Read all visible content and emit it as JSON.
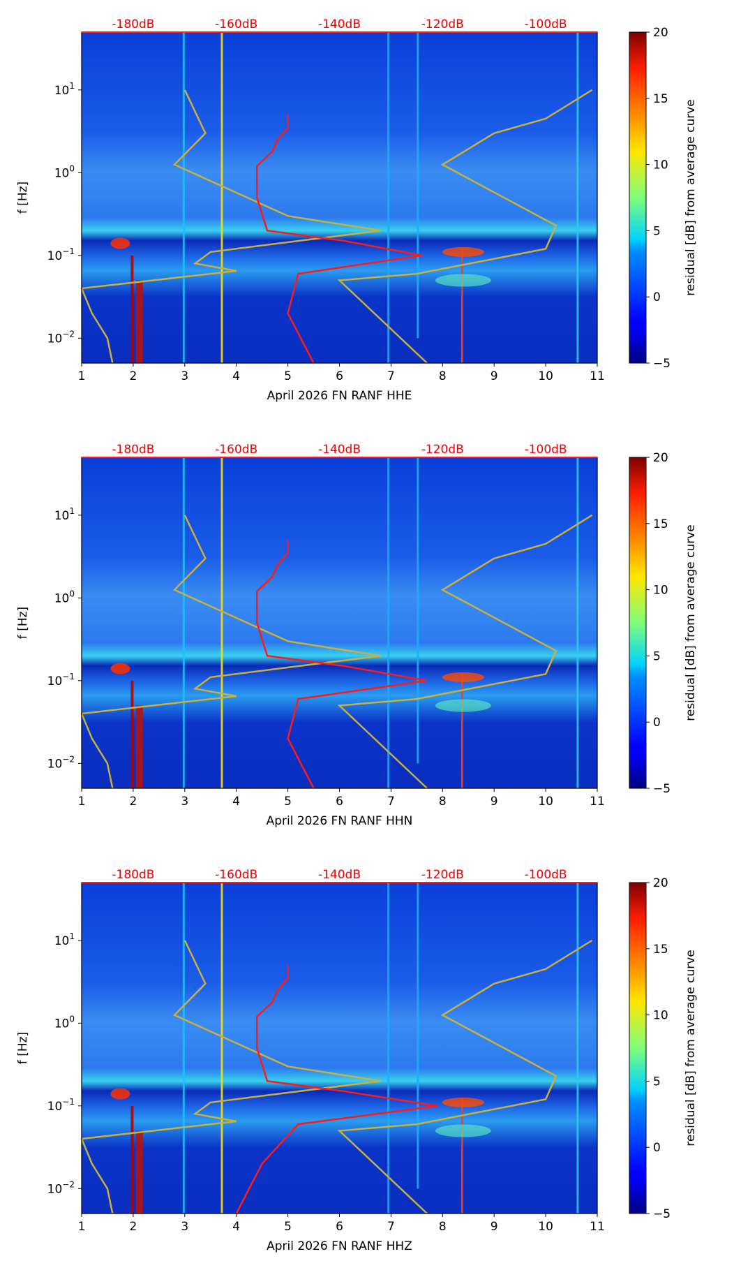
{
  "figure": {
    "colorbar_label": "residual [dB] from average curve",
    "colorbar_ticks": [
      -5,
      0,
      5,
      10,
      15,
      20
    ],
    "colorbar_range": [
      -5,
      20
    ],
    "top_db_labels": [
      "-180dB",
      "-160dB",
      "-140dB",
      "-120dB",
      "-100dB"
    ],
    "x_ticks": [
      1,
      2,
      3,
      4,
      5,
      6,
      7,
      8,
      9,
      10,
      11
    ],
    "y_ticks": [
      {
        "exp": "1",
        "value": 10
      },
      {
        "exp": "0",
        "value": 1
      },
      {
        "exp": "−1",
        "value": 0.1
      },
      {
        "exp": "−2",
        "value": 0.01
      }
    ],
    "ylabel": "f [Hz]",
    "colors": {
      "red_curve": "#ff1a1a",
      "model_curve": "#c8b040",
      "db_label": "#ee0000"
    }
  },
  "chart_data": [
    {
      "type": "heatmap",
      "title": "",
      "xlabel": "April 2026 FN RANF  HHE",
      "ylabel": "f [Hz]",
      "xlim": [
        1,
        11
      ],
      "ylim": [
        0.005,
        50
      ],
      "yscale": "log",
      "top_axis_labels": [
        "-180dB",
        "-160dB",
        "-140dB",
        "-120dB",
        "-100dB"
      ],
      "series": [
        {
          "name": "average PSD curve (red)",
          "dB": [
            -150,
            -150,
            -152,
            -153,
            -156,
            -156,
            -154,
            -139,
            -124,
            -148,
            -150,
            -145
          ],
          "freq": [
            5,
            3.5,
            2.5,
            1.8,
            1.2,
            0.5,
            0.2,
            0.15,
            0.1,
            0.06,
            0.02,
            0.005
          ]
        }
      ]
    },
    {
      "type": "heatmap",
      "title": "",
      "xlabel": "April 2026 FN RANF  HHN",
      "ylabel": "f [Hz]",
      "xlim": [
        1,
        11
      ],
      "ylim": [
        0.005,
        50
      ],
      "yscale": "log",
      "top_axis_labels": [
        "-180dB",
        "-160dB",
        "-140dB",
        "-120dB",
        "-100dB"
      ],
      "series": [
        {
          "name": "average PSD curve (red)",
          "dB": [
            -150,
            -150,
            -152,
            -153,
            -156,
            -156,
            -154,
            -139,
            -123,
            -148,
            -150,
            -145
          ],
          "freq": [
            5,
            3.5,
            2.5,
            1.8,
            1.2,
            0.5,
            0.2,
            0.15,
            0.1,
            0.06,
            0.02,
            0.005
          ]
        }
      ]
    },
    {
      "type": "heatmap",
      "title": "",
      "xlabel": "April 2026 FN RANF  HHZ",
      "ylabel": "f [Hz]",
      "xlim": [
        1,
        11
      ],
      "ylim": [
        0.005,
        50
      ],
      "yscale": "log",
      "top_axis_labels": [
        "-180dB",
        "-160dB",
        "-140dB",
        "-120dB",
        "-100dB"
      ],
      "series": [
        {
          "name": "average PSD curve (red)",
          "dB": [
            -150,
            -150,
            -152,
            -153,
            -156,
            -156,
            -154,
            -139,
            -121,
            -148,
            -155,
            -160
          ],
          "freq": [
            5,
            3.5,
            2.5,
            1.8,
            1.2,
            0.5,
            0.2,
            0.15,
            0.1,
            0.06,
            0.02,
            0.005
          ]
        }
      ]
    }
  ]
}
